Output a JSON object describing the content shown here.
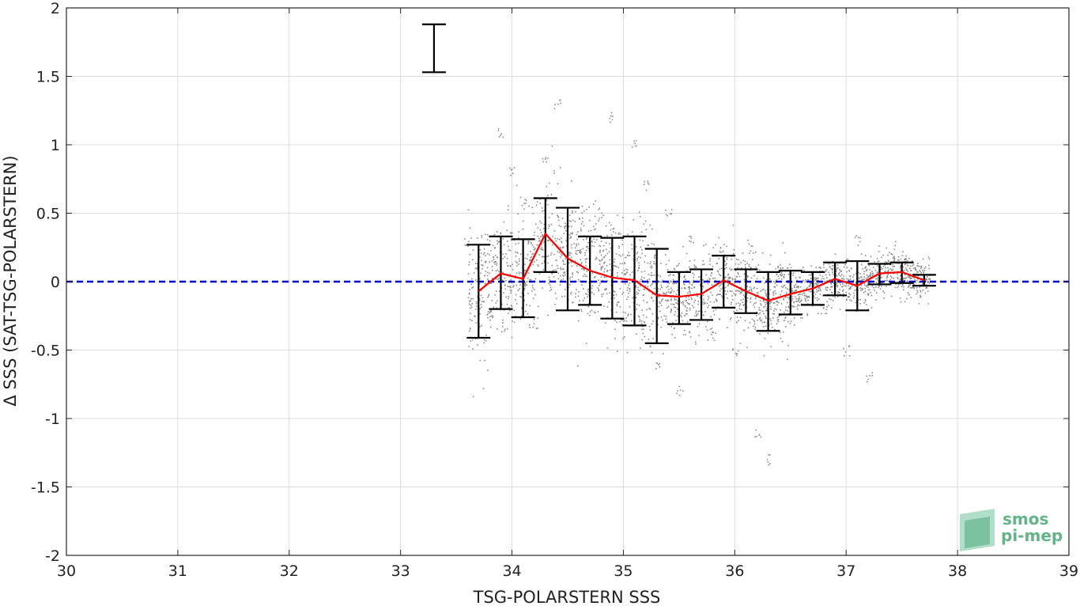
{
  "chart_data": {
    "type": "scatter",
    "title": "",
    "xlabel": "TSG-POLARSTERN SSS",
    "ylabel": "Δ SSS (SAT-TSG-POLARSTERN)",
    "xlim": [
      30,
      39
    ],
    "ylim": [
      -2,
      2
    ],
    "xticks": [
      30,
      31,
      32,
      33,
      34,
      35,
      36,
      37,
      38,
      39
    ],
    "yticks": [
      -2,
      -1.5,
      -1,
      -0.5,
      0,
      0.5,
      1,
      1.5,
      2
    ],
    "grid": true,
    "reference_line": {
      "y": 0,
      "style": "dashed",
      "color": "#0000cc"
    },
    "series": [
      {
        "kind": "scatter-cloud",
        "color": "#8c8c8c",
        "description_points": [
          [
            33.6,
            0.3
          ],
          [
            33.7,
            0.1
          ],
          [
            33.8,
            -0.2
          ],
          [
            33.9,
            1.1
          ],
          [
            34.0,
            0.8
          ],
          [
            34.1,
            0.6
          ],
          [
            34.2,
            -0.3
          ],
          [
            34.3,
            0.9
          ],
          [
            34.4,
            1.3
          ],
          [
            34.5,
            0.4
          ],
          [
            34.6,
            0.2
          ],
          [
            34.7,
            -0.1
          ],
          [
            34.8,
            0.5
          ],
          [
            34.9,
            1.2
          ],
          [
            35.0,
            -0.3
          ],
          [
            35.1,
            1.0
          ],
          [
            35.2,
            0.7
          ],
          [
            35.3,
            -0.6
          ],
          [
            35.4,
            0.5
          ],
          [
            35.5,
            -0.8
          ],
          [
            35.6,
            0.3
          ],
          [
            35.7,
            0.0
          ],
          [
            35.8,
            -0.4
          ],
          [
            35.9,
            0.2
          ],
          [
            36.0,
            -0.5
          ],
          [
            36.1,
            0.1
          ],
          [
            36.2,
            -1.1
          ],
          [
            36.3,
            -1.3
          ],
          [
            36.4,
            0.1
          ],
          [
            36.5,
            -0.2
          ],
          [
            36.6,
            -0.1
          ],
          [
            36.7,
            0.0
          ],
          [
            36.8,
            -0.2
          ],
          [
            36.9,
            0.1
          ],
          [
            37.0,
            -0.5
          ],
          [
            37.1,
            0.3
          ],
          [
            37.2,
            -0.7
          ],
          [
            37.3,
            0.1
          ],
          [
            37.4,
            0.2
          ],
          [
            37.5,
            0.05
          ],
          [
            37.6,
            0.0
          ],
          [
            37.7,
            0.0
          ]
        ]
      },
      {
        "kind": "mean-line",
        "color": "#ff0000",
        "x": [
          33.7,
          33.9,
          34.1,
          34.3,
          34.5,
          34.7,
          34.9,
          35.1,
          35.3,
          35.5,
          35.7,
          35.9,
          36.1,
          36.3,
          36.5,
          36.7,
          36.9,
          37.1,
          37.3,
          37.5,
          37.7
        ],
        "y": [
          -0.07,
          0.06,
          0.02,
          0.35,
          0.17,
          0.08,
          0.03,
          0.01,
          -0.1,
          -0.11,
          -0.09,
          0.01,
          -0.07,
          -0.14,
          -0.09,
          -0.05,
          0.02,
          -0.03,
          0.06,
          0.07,
          0.01
        ]
      },
      {
        "kind": "error-bars",
        "color": "#000000",
        "x": [
          33.3,
          33.7,
          33.9,
          34.1,
          34.3,
          34.5,
          34.7,
          34.9,
          35.1,
          35.3,
          35.5,
          35.7,
          35.9,
          36.1,
          36.3,
          36.5,
          36.7,
          36.9,
          37.1,
          37.3,
          37.5,
          37.7
        ],
        "upper": [
          1.88,
          0.27,
          0.33,
          0.31,
          0.61,
          0.54,
          0.33,
          0.32,
          0.33,
          0.24,
          0.07,
          0.09,
          0.19,
          0.09,
          0.07,
          0.08,
          0.07,
          0.14,
          0.15,
          0.13,
          0.14,
          0.05
        ],
        "lower": [
          1.53,
          -0.41,
          -0.2,
          -0.26,
          0.07,
          -0.21,
          -0.17,
          -0.27,
          -0.32,
          -0.45,
          -0.31,
          -0.28,
          -0.19,
          -0.23,
          -0.36,
          -0.24,
          -0.17,
          -0.1,
          -0.21,
          -0.02,
          -0.01,
          -0.03
        ]
      }
    ]
  },
  "logo": {
    "line1": "smos",
    "line2": "pi-mep"
  }
}
